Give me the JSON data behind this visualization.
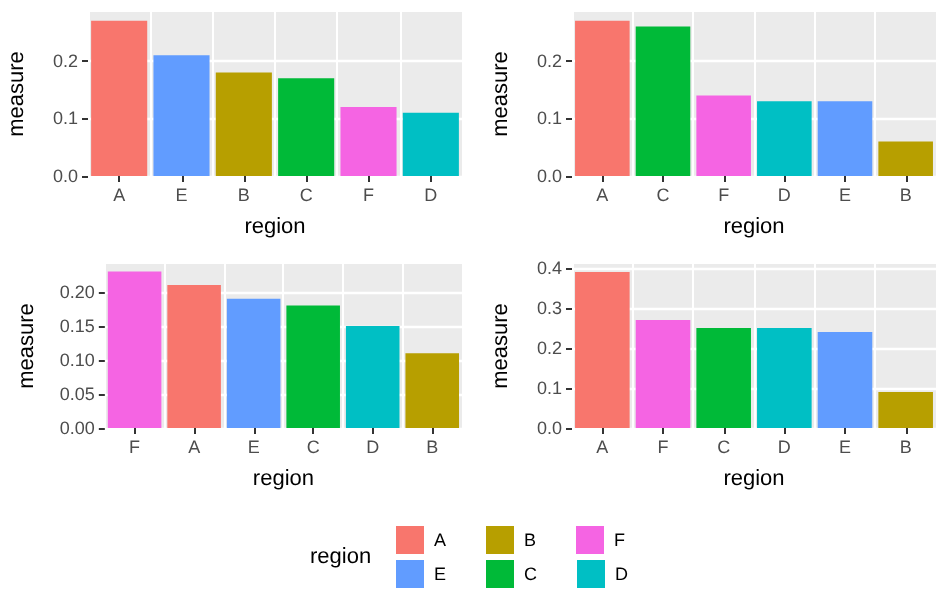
{
  "chart_data": [
    {
      "type": "bar",
      "xlabel": "region",
      "ylabel": "measure",
      "categories": [
        "A",
        "E",
        "B",
        "C",
        "F",
        "D"
      ],
      "series": [
        {
          "name": "A",
          "color": "#f8766d",
          "values": [
            0.27,
            null,
            null,
            null,
            null,
            null
          ]
        },
        {
          "name": "E",
          "color": "#619cff",
          "values": [
            null,
            0.21,
            null,
            null,
            null,
            null
          ]
        },
        {
          "name": "B",
          "color": "#b79f00",
          "values": [
            null,
            null,
            0.18,
            null,
            null,
            null
          ]
        },
        {
          "name": "C",
          "color": "#00ba38",
          "values": [
            null,
            null,
            null,
            0.17,
            null,
            null
          ]
        },
        {
          "name": "F",
          "color": "#f564e3",
          "values": [
            null,
            null,
            null,
            null,
            0.12,
            null
          ]
        },
        {
          "name": "D",
          "color": "#00bfc4",
          "values": [
            null,
            null,
            null,
            null,
            null,
            0.11
          ]
        }
      ],
      "ylim": [
        0,
        0.285
      ],
      "yticks": [
        {
          "value": 0,
          "label": "0.0"
        },
        0.1,
        0.2
      ],
      "grid": true,
      "legend": "bottom",
      "legend_title": "region"
    },
    {
      "type": "bar",
      "xlabel": "region",
      "ylabel": "measure",
      "categories": [
        "A",
        "C",
        "F",
        "D",
        "E",
        "B"
      ],
      "values": [
        0.27,
        0.26,
        0.14,
        0.13,
        0.13,
        0.06
      ],
      "colors": [
        "#f8766d",
        "#00ba38",
        "#f564e3",
        "#00bfc4",
        "#619cff",
        "#b79f00"
      ],
      "ylim": [
        0,
        0.285
      ],
      "yticks": [
        {
          "value": 0,
          "label": "0.0"
        },
        0.1,
        0.2
      ],
      "grid": true
    },
    {
      "type": "bar",
      "xlabel": "region",
      "ylabel": "measure",
      "categories": [
        "F",
        "A",
        "E",
        "C",
        "D",
        "B"
      ],
      "values": [
        0.23,
        0.21,
        0.19,
        0.18,
        0.15,
        0.11
      ],
      "colors": [
        "#f564e3",
        "#f8766d",
        "#619cff",
        "#00ba38",
        "#00bfc4",
        "#b79f00"
      ],
      "ylim": [
        0,
        0.241
      ],
      "yticks": [
        {
          "value": 0,
          "label": "0.00"
        },
        {
          "value": 0.05,
          "label": "0.05"
        },
        {
          "value": 0.1,
          "label": "0.10"
        },
        {
          "value": 0.15,
          "label": "0.15"
        },
        {
          "value": 0.2,
          "label": "0.20"
        }
      ],
      "grid": true
    },
    {
      "type": "bar",
      "xlabel": "region",
      "ylabel": "measure",
      "categories": [
        "A",
        "F",
        "C",
        "D",
        "E",
        "B"
      ],
      "values": [
        0.39,
        0.27,
        0.25,
        0.25,
        0.24,
        0.09
      ],
      "colors": [
        "#f8766d",
        "#f564e3",
        "#00ba38",
        "#00bfc4",
        "#619cff",
        "#b79f00"
      ],
      "ylim": [
        0,
        0.41
      ],
      "yticks": [
        {
          "value": 0,
          "label": "0.0"
        },
        0.1,
        0.2,
        0.3,
        0.4
      ],
      "grid": true
    }
  ]
}
